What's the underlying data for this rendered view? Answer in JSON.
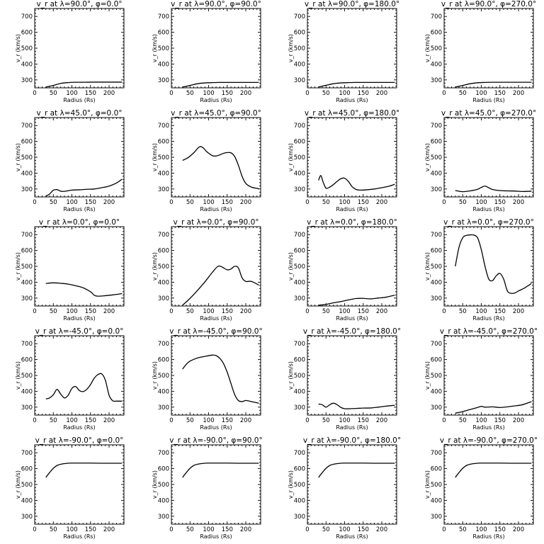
{
  "chart_data": [
    {
      "type": "line",
      "title": "v_r at λ=90.0°, φ=0.0°",
      "xlabel": "Radius (Rs)",
      "ylabel": "v_r (km/s)",
      "xlim": [
        0,
        240
      ],
      "ylim": [
        250,
        750
      ],
      "xticks": [
        0,
        50,
        100,
        150,
        200
      ],
      "yticks": [
        300,
        400,
        500,
        600,
        700
      ],
      "series": [
        {
          "x": [
            30,
            50,
            70,
            90,
            110,
            130,
            150,
            170,
            190,
            210,
            235
          ],
          "y": [
            255,
            265,
            278,
            283,
            285,
            285,
            286,
            286,
            286,
            286,
            286
          ]
        }
      ]
    },
    {
      "type": "line",
      "title": "v_r at λ=90.0°, φ=90.0°",
      "xlabel": "Radius (Rs)",
      "ylabel": "v_r (km/s)",
      "xlim": [
        0,
        240
      ],
      "ylim": [
        250,
        750
      ],
      "xticks": [
        0,
        50,
        100,
        150,
        200
      ],
      "yticks": [
        300,
        400,
        500,
        600,
        700
      ],
      "series": [
        {
          "x": [
            30,
            50,
            70,
            90,
            110,
            130,
            150,
            170,
            190,
            210,
            235
          ],
          "y": [
            255,
            265,
            276,
            281,
            283,
            284,
            284,
            284,
            284,
            284,
            284
          ]
        }
      ]
    },
    {
      "type": "line",
      "title": "v_r at λ=90.0°, φ=180.0°",
      "xlabel": "Radius (Rs)",
      "ylabel": "v_r (km/s)",
      "xlim": [
        0,
        240
      ],
      "ylim": [
        250,
        750
      ],
      "xticks": [
        0,
        50,
        100,
        150,
        200
      ],
      "yticks": [
        300,
        400,
        500,
        600,
        700
      ],
      "series": [
        {
          "x": [
            30,
            50,
            70,
            90,
            110,
            130,
            150,
            170,
            190,
            210,
            235
          ],
          "y": [
            255,
            266,
            276,
            281,
            283,
            284,
            284,
            284,
            284,
            284,
            284
          ]
        }
      ]
    },
    {
      "type": "line",
      "title": "v_r at λ=90.0°, φ=270.0°",
      "xlabel": "Radius (Rs)",
      "ylabel": "v_r (km/s)",
      "xlim": [
        0,
        240
      ],
      "ylim": [
        250,
        750
      ],
      "xticks": [
        0,
        50,
        100,
        150,
        200
      ],
      "yticks": [
        300,
        400,
        500,
        600,
        700
      ],
      "series": [
        {
          "x": [
            30,
            50,
            70,
            90,
            110,
            130,
            150,
            170,
            190,
            210,
            235
          ],
          "y": [
            255,
            265,
            276,
            282,
            284,
            285,
            285,
            285,
            285,
            285,
            285
          ]
        }
      ]
    },
    {
      "type": "line",
      "title": "v_r at λ=45.0°, φ=0.0°",
      "xlabel": "Radius (Rs)",
      "ylabel": "v_r (km/s)",
      "xlim": [
        0,
        240
      ],
      "ylim": [
        250,
        750
      ],
      "xticks": [
        0,
        50,
        100,
        150,
        200
      ],
      "yticks": [
        300,
        400,
        500,
        600,
        700
      ],
      "series": [
        {
          "x": [
            30,
            40,
            50,
            60,
            70,
            80,
            100,
            120,
            140,
            160,
            180,
            200,
            220,
            235
          ],
          "y": [
            255,
            268,
            292,
            296,
            286,
            285,
            293,
            295,
            298,
            300,
            308,
            318,
            338,
            362
          ]
        }
      ]
    },
    {
      "type": "line",
      "title": "v_r at λ=45.0°, φ=90.0°",
      "xlabel": "Radius (Rs)",
      "ylabel": "v_r (km/s)",
      "xlim": [
        0,
        240
      ],
      "ylim": [
        250,
        750
      ],
      "xticks": [
        0,
        50,
        100,
        150,
        200
      ],
      "yticks": [
        300,
        400,
        500,
        600,
        700
      ],
      "series": [
        {
          "x": [
            30,
            45,
            60,
            75,
            85,
            95,
            110,
            120,
            130,
            145,
            160,
            170,
            180,
            190,
            200,
            215,
            235
          ],
          "y": [
            480,
            498,
            528,
            565,
            560,
            535,
            510,
            508,
            515,
            528,
            528,
            505,
            450,
            380,
            335,
            312,
            302
          ]
        }
      ]
    },
    {
      "type": "line",
      "title": "v_r at λ=45.0°, φ=180.0°",
      "xlabel": "Radius (Rs)",
      "ylabel": "v_r (km/s)",
      "xlim": [
        0,
        240
      ],
      "ylim": [
        250,
        750
      ],
      "xticks": [
        0,
        50,
        100,
        150,
        200
      ],
      "yticks": [
        300,
        400,
        500,
        600,
        700
      ],
      "series": [
        {
          "x": [
            30,
            36,
            42,
            50,
            60,
            70,
            80,
            90,
            100,
            110,
            120,
            130,
            140,
            160,
            180,
            200,
            220,
            235
          ],
          "y": [
            355,
            385,
            345,
            305,
            312,
            328,
            348,
            365,
            368,
            348,
            315,
            298,
            293,
            295,
            300,
            308,
            318,
            330
          ]
        }
      ]
    },
    {
      "type": "line",
      "title": "v_r at λ=45.0°, φ=270.0°",
      "xlabel": "Radius (Rs)",
      "ylabel": "v_r (km/s)",
      "xlim": [
        0,
        240
      ],
      "ylim": [
        250,
        750
      ],
      "xticks": [
        0,
        50,
        100,
        150,
        200
      ],
      "yticks": [
        300,
        400,
        500,
        600,
        700
      ],
      "series": [
        {
          "x": [
            30,
            50,
            70,
            90,
            100,
            110,
            120,
            130,
            150,
            170,
            190,
            210,
            235
          ],
          "y": [
            290,
            283,
            288,
            298,
            310,
            318,
            308,
            297,
            290,
            288,
            287,
            284,
            286
          ]
        }
      ]
    },
    {
      "type": "line",
      "title": "v_r at λ=0.0°, φ=0.0°",
      "xlabel": "Radius (Rs)",
      "ylabel": "v_r (km/s)",
      "xlim": [
        0,
        240
      ],
      "ylim": [
        250,
        750
      ],
      "xticks": [
        0,
        50,
        100,
        150,
        200
      ],
      "yticks": [
        300,
        400,
        500,
        600,
        700
      ],
      "series": [
        {
          "x": [
            30,
            50,
            70,
            90,
            110,
            130,
            150,
            160,
            170,
            190,
            210,
            235
          ],
          "y": [
            392,
            396,
            393,
            388,
            378,
            365,
            340,
            318,
            312,
            315,
            320,
            328
          ]
        }
      ]
    },
    {
      "type": "line",
      "title": "v_r at λ=0.0°, φ=90.0°",
      "xlabel": "Radius (Rs)",
      "ylabel": "v_r (km/s)",
      "xlim": [
        0,
        240
      ],
      "ylim": [
        250,
        750
      ],
      "xticks": [
        0,
        50,
        100,
        150,
        200
      ],
      "yticks": [
        300,
        400,
        500,
        600,
        700
      ],
      "series": [
        {
          "x": [
            30,
            50,
            70,
            90,
            110,
            125,
            135,
            150,
            160,
            170,
            180,
            190,
            200,
            215,
            235
          ],
          "y": [
            255,
            298,
            348,
            402,
            462,
            500,
            497,
            478,
            483,
            500,
            490,
            428,
            405,
            405,
            382
          ]
        }
      ]
    },
    {
      "type": "line",
      "title": "v_r at λ=0.0°, φ=180.0°",
      "xlabel": "Radius (Rs)",
      "ylabel": "v_r (km/s)",
      "xlim": [
        0,
        240
      ],
      "ylim": [
        250,
        750
      ],
      "xticks": [
        0,
        50,
        100,
        150,
        200
      ],
      "yticks": [
        300,
        400,
        500,
        600,
        700
      ],
      "series": [
        {
          "x": [
            30,
            50,
            70,
            90,
            110,
            130,
            150,
            170,
            190,
            210,
            235
          ],
          "y": [
            255,
            260,
            270,
            278,
            288,
            297,
            298,
            295,
            300,
            305,
            318
          ]
        }
      ]
    },
    {
      "type": "line",
      "title": "v_r at λ=0.0°, φ=270.0°",
      "xlabel": "Radius (Rs)",
      "ylabel": "v_r (km/s)",
      "xlim": [
        0,
        240
      ],
      "ylim": [
        250,
        750
      ],
      "xticks": [
        0,
        50,
        100,
        150,
        200
      ],
      "yticks": [
        300,
        400,
        500,
        600,
        700
      ],
      "series": [
        {
          "x": [
            30,
            40,
            50,
            60,
            70,
            80,
            90,
            100,
            110,
            120,
            130,
            140,
            150,
            160,
            170,
            180,
            190,
            200,
            215,
            235
          ],
          "y": [
            500,
            620,
            680,
            695,
            698,
            697,
            680,
            605,
            500,
            420,
            410,
            440,
            455,
            420,
            345,
            330,
            332,
            345,
            362,
            392
          ]
        }
      ]
    },
    {
      "type": "line",
      "title": "v_r at λ=-45.0°, φ=0.0°",
      "xlabel": "Radius (Rs)",
      "ylabel": "v_r (km/s)",
      "xlim": [
        0,
        240
      ],
      "ylim": [
        250,
        750
      ],
      "xticks": [
        0,
        50,
        100,
        150,
        200
      ],
      "yticks": [
        300,
        400,
        500,
        600,
        700
      ],
      "series": [
        {
          "x": [
            30,
            40,
            50,
            60,
            70,
            80,
            90,
            100,
            110,
            120,
            130,
            140,
            150,
            160,
            170,
            180,
            190,
            200,
            210,
            220,
            235
          ],
          "y": [
            352,
            358,
            378,
            412,
            382,
            358,
            375,
            418,
            430,
            405,
            398,
            412,
            442,
            482,
            505,
            510,
            470,
            375,
            340,
            338,
            338
          ]
        }
      ]
    },
    {
      "type": "line",
      "title": "v_r at λ=-45.0°, φ=90.0°",
      "xlabel": "Radius (Rs)",
      "ylabel": "v_r (km/s)",
      "xlim": [
        0,
        240
      ],
      "ylim": [
        250,
        750
      ],
      "xticks": [
        0,
        50,
        100,
        150,
        200
      ],
      "yticks": [
        300,
        400,
        500,
        600,
        700
      ],
      "series": [
        {
          "x": [
            30,
            40,
            50,
            70,
            90,
            110,
            120,
            130,
            140,
            150,
            160,
            170,
            180,
            190,
            200,
            215,
            235
          ],
          "y": [
            540,
            570,
            590,
            610,
            620,
            628,
            625,
            608,
            575,
            520,
            450,
            380,
            342,
            335,
            342,
            335,
            325
          ]
        }
      ]
    },
    {
      "type": "line",
      "title": "v_r at λ=-45.0°, φ=180.0°",
      "xlabel": "Radius (Rs)",
      "ylabel": "v_r (km/s)",
      "xlim": [
        0,
        240
      ],
      "ylim": [
        250,
        750
      ],
      "xticks": [
        0,
        50,
        100,
        150,
        200
      ],
      "yticks": [
        300,
        400,
        500,
        600,
        700
      ],
      "series": [
        {
          "x": [
            30,
            40,
            50,
            60,
            70,
            80,
            90,
            100,
            110,
            130,
            150,
            170,
            190,
            210,
            235
          ],
          "y": [
            320,
            315,
            300,
            315,
            325,
            315,
            298,
            290,
            290,
            292,
            294,
            295,
            300,
            306,
            312
          ]
        }
      ]
    },
    {
      "type": "line",
      "title": "v_r at λ=-45.0°, φ=270.0°",
      "xlabel": "Radius (Rs)",
      "ylabel": "v_r (km/s)",
      "xlim": [
        0,
        240
      ],
      "ylim": [
        250,
        750
      ],
      "xticks": [
        0,
        50,
        100,
        150,
        200
      ],
      "yticks": [
        300,
        400,
        500,
        600,
        700
      ],
      "series": [
        {
          "x": [
            30,
            50,
            70,
            90,
            100,
            110,
            130,
            150,
            170,
            190,
            210,
            235
          ],
          "y": [
            262,
            272,
            285,
            298,
            305,
            300,
            302,
            298,
            302,
            308,
            315,
            335
          ]
        }
      ]
    },
    {
      "type": "line",
      "title": "v_r at λ=-90.0°, φ=0.0°",
      "xlabel": "Radius (Rs)",
      "ylabel": "v_r (km/s)",
      "xlim": [
        0,
        240
      ],
      "ylim": [
        250,
        750
      ],
      "xticks": [
        0,
        50,
        100,
        150,
        200
      ],
      "yticks": [
        300,
        400,
        500,
        600,
        700
      ],
      "series": [
        {
          "x": [
            30,
            40,
            50,
            60,
            70,
            85,
            100,
            120,
            150,
            180,
            210,
            235
          ],
          "y": [
            545,
            575,
            602,
            620,
            628,
            633,
            635,
            635,
            635,
            634,
            634,
            634
          ]
        }
      ]
    },
    {
      "type": "line",
      "title": "v_r at λ=-90.0°, φ=90.0°",
      "xlabel": "Radius (Rs)",
      "ylabel": "v_r (km/s)",
      "xlim": [
        0,
        240
      ],
      "ylim": [
        250,
        750
      ],
      "xticks": [
        0,
        50,
        100,
        150,
        200
      ],
      "yticks": [
        300,
        400,
        500,
        600,
        700
      ],
      "series": [
        {
          "x": [
            30,
            40,
            50,
            60,
            70,
            85,
            100,
            120,
            150,
            180,
            210,
            235
          ],
          "y": [
            545,
            575,
            602,
            620,
            628,
            633,
            635,
            635,
            635,
            634,
            634,
            634
          ]
        }
      ]
    },
    {
      "type": "line",
      "title": "v_r at λ=-90.0°, φ=180.0°",
      "xlabel": "Radius (Rs)",
      "ylabel": "v_r (km/s)",
      "xlim": [
        0,
        240
      ],
      "ylim": [
        250,
        750
      ],
      "xticks": [
        0,
        50,
        100,
        150,
        200
      ],
      "yticks": [
        300,
        400,
        500,
        600,
        700
      ],
      "series": [
        {
          "x": [
            30,
            40,
            50,
            60,
            70,
            85,
            100,
            120,
            150,
            180,
            210,
            235
          ],
          "y": [
            545,
            575,
            602,
            620,
            628,
            633,
            635,
            635,
            635,
            634,
            634,
            634
          ]
        }
      ]
    },
    {
      "type": "line",
      "title": "v_r at λ=-90.0°, φ=270.0°",
      "xlabel": "Radius (Rs)",
      "ylabel": "v_r (km/s)",
      "xlim": [
        0,
        240
      ],
      "ylim": [
        250,
        750
      ],
      "xticks": [
        0,
        50,
        100,
        150,
        200
      ],
      "yticks": [
        300,
        400,
        500,
        600,
        700
      ],
      "series": [
        {
          "x": [
            30,
            40,
            50,
            60,
            70,
            85,
            100,
            120,
            150,
            180,
            210,
            235
          ],
          "y": [
            545,
            575,
            602,
            620,
            628,
            633,
            635,
            635,
            635,
            634,
            634,
            634
          ]
        }
      ]
    }
  ]
}
